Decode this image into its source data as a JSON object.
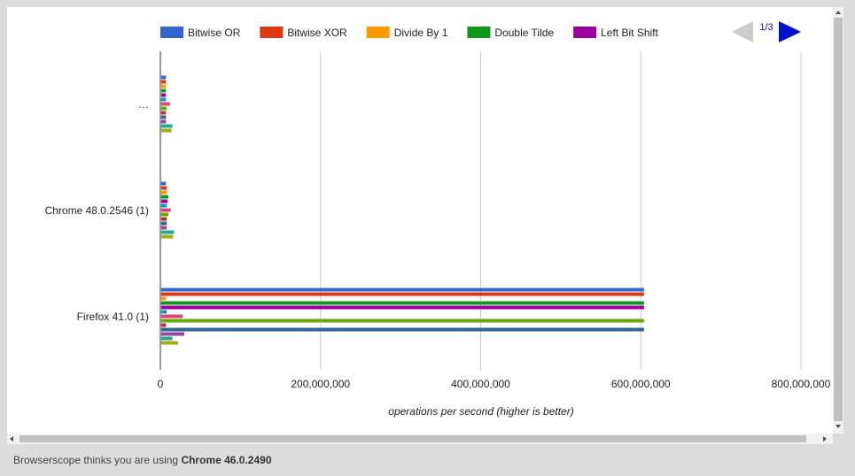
{
  "chart_data": {
    "type": "bar",
    "orientation": "horizontal",
    "categories": [
      "…",
      "Chrome 48.0.2546 (1)",
      "Firefox 41.0 (1)"
    ],
    "series": [
      {
        "name": "Bitwise OR",
        "color": "#3366cc",
        "values": [
          7000000,
          7000000,
          604000000
        ]
      },
      {
        "name": "Bitwise XOR",
        "color": "#dc3912",
        "values": [
          7000000,
          8000000,
          604000000
        ]
      },
      {
        "name": "Divide By 1",
        "color": "#ff9900",
        "values": [
          7000000,
          8000000,
          7000000
        ]
      },
      {
        "name": "Double Tilde",
        "color": "#109618",
        "values": [
          7000000,
          10000000,
          604000000
        ]
      },
      {
        "name": "Left Bit Shift",
        "color": "#990099",
        "values": [
          7000000,
          9000000,
          604000000
        ]
      },
      {
        "name": "",
        "color": "#0099c6",
        "values": [
          7000000,
          8000000,
          8000000
        ]
      },
      {
        "name": "",
        "color": "#dd4477",
        "values": [
          12000000,
          13000000,
          28000000
        ]
      },
      {
        "name": "",
        "color": "#66aa00",
        "values": [
          8000000,
          10000000,
          604000000
        ]
      },
      {
        "name": "",
        "color": "#b82e2e",
        "values": [
          7000000,
          8000000,
          7000000
        ]
      },
      {
        "name": "",
        "color": "#316395",
        "values": [
          7000000,
          8000000,
          604000000
        ]
      },
      {
        "name": "",
        "color": "#994499",
        "values": [
          7000000,
          8000000,
          30000000
        ]
      },
      {
        "name": "",
        "color": "#22aa99",
        "values": [
          15000000,
          17000000,
          15000000
        ]
      },
      {
        "name": "",
        "color": "#aaaa11",
        "values": [
          14000000,
          16000000,
          22000000
        ]
      }
    ],
    "xlim": [
      0,
      800000000
    ],
    "xticks": [
      "0",
      "200,000,000",
      "400,000,000",
      "600,000,000",
      "800,000,000"
    ],
    "xlabel": "operations per second (higher is better)",
    "ylabel": "",
    "grid": true,
    "legend_position": "top",
    "legend_page": "1/3"
  },
  "footer": {
    "prefix": "Browserscope thinks you are using ",
    "browser": "Chrome 46.0.2490"
  }
}
